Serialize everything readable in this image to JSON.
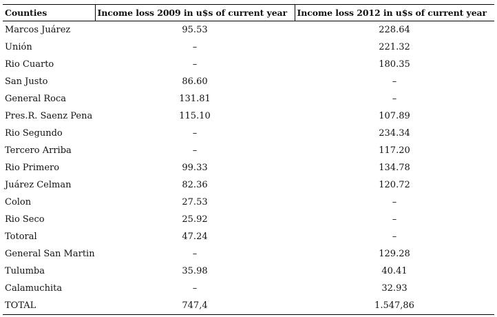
{
  "table": {
    "headers": [
      "Counties",
      "Income loss 2009 in u$s of current year",
      "Income loss 2012 in u$s of current year"
    ],
    "rows": [
      {
        "county": "Marcos Juárez",
        "loss_2009": "95.53",
        "loss_2012": "228.64"
      },
      {
        "county": "Unión",
        "loss_2009": "–",
        "loss_2012": "221.32"
      },
      {
        "county": "Rio Cuarto",
        "loss_2009": "–",
        "loss_2012": "180.35"
      },
      {
        "county": "San Justo",
        "loss_2009": "86.60",
        "loss_2012": "–"
      },
      {
        "county": "General Roca",
        "loss_2009": "131.81",
        "loss_2012": "–"
      },
      {
        "county": "Pres.R. Saenz Pena",
        "loss_2009": "115.10",
        "loss_2012": "107.89"
      },
      {
        "county": "Rio Segundo",
        "loss_2009": "–",
        "loss_2012": "234.34"
      },
      {
        "county": "Tercero Arriba",
        "loss_2009": "–",
        "loss_2012": "117.20"
      },
      {
        "county": "Rio Primero",
        "loss_2009": "99.33",
        "loss_2012": "134.78"
      },
      {
        "county": "Juárez Celman",
        "loss_2009": "82.36",
        "loss_2012": "120.72"
      },
      {
        "county": "Colon",
        "loss_2009": "27.53",
        "loss_2012": "–"
      },
      {
        "county": "Rio Seco",
        "loss_2009": "25.92",
        "loss_2012": "–"
      },
      {
        "county": "Totoral",
        "loss_2009": "47.24",
        "loss_2012": "–"
      },
      {
        "county": "General San Martin",
        "loss_2009": "–",
        "loss_2012": "129.28"
      },
      {
        "county": "Tulumba",
        "loss_2009": "35.98",
        "loss_2012": "40.41"
      },
      {
        "county": "Calamuchita",
        "loss_2009": "–",
        "loss_2012": "32.93"
      },
      {
        "county": "TOTAL",
        "loss_2009": "747,4",
        "loss_2012": "1.547,86"
      }
    ]
  }
}
